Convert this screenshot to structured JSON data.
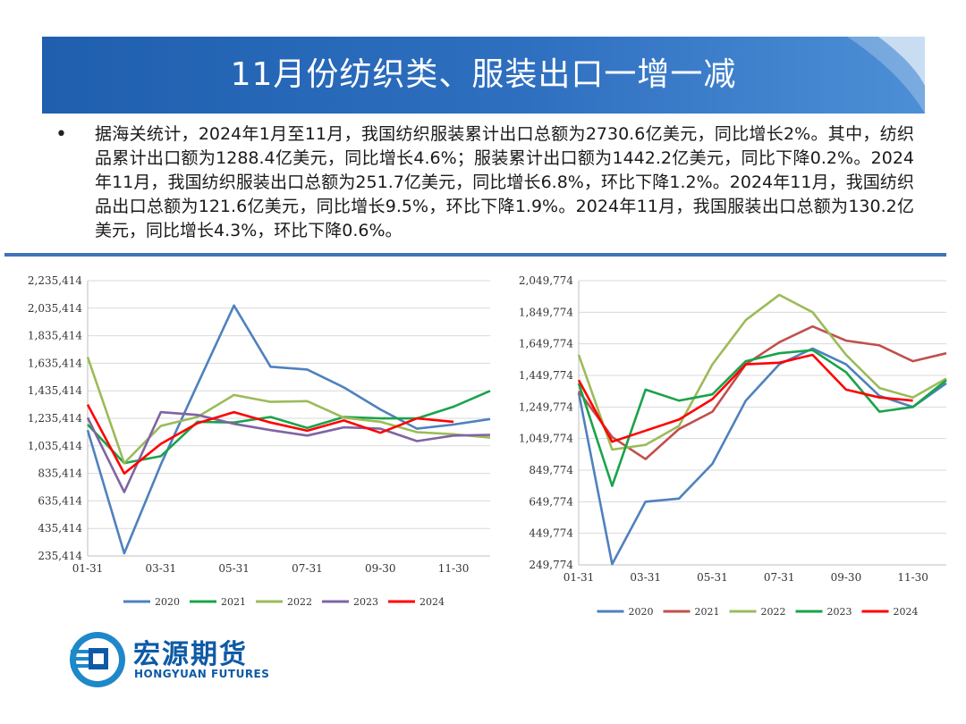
{
  "header": {
    "title": "11月份纺织类、服装出口一增一减"
  },
  "summary": {
    "bullet": "•",
    "text": "据海关统计，2024年1月至11月，我国纺织服装累计出口总额为2730.6亿美元，同比增长2%。其中，纺织品累计出口额为1288.4亿美元，同比增长4.6%；服装累计出口额为1442.2亿美元，同比下降0.2%。2024年11月，我国纺织服装出口总额为251.7亿美元，同比增长6.8%，环比下降1.2%。2024年11月，我国纺织品出口总额为121.6亿美元，同比增长9.5%，环比下降1.9%。2024年11月，我国服装出口总额为130.2亿美元，同比增长4.3%，环比下降0.6%。"
  },
  "logo": {
    "cn": "宏源期货",
    "en": "HONGYUAN FUTURES"
  },
  "colors": {
    "banner_dark": "#1f5fae",
    "banner_light": "#4d8fd6",
    "divider": "#3f73b9"
  },
  "chart_data": [
    {
      "type": "line",
      "title": "",
      "xlabel": "",
      "ylabel": "",
      "x_ticks": [
        "01-31",
        "03-31",
        "05-31",
        "07-31",
        "09-30",
        "11-30"
      ],
      "y_ticks": [
        "2,235,414",
        "2,035,414",
        "1,835,414",
        "1,635,414",
        "1,435,414",
        "1,235,414",
        "1,035,414",
        "835,414",
        "635,414",
        "435,414",
        "235,414"
      ],
      "ylim": [
        235414,
        2235414
      ],
      "months": 12,
      "grid": "horizontal",
      "legend_position": "bottom",
      "series": [
        {
          "name": "2020",
          "color": "#4f81bd",
          "values": [
            1150000,
            255000,
            900000,
            1480000,
            2055000,
            1610000,
            1590000,
            1460000,
            1300000,
            1160000,
            1190000,
            1230000
          ]
        },
        {
          "name": "2021",
          "color": "#1aa34a",
          "values": [
            1190000,
            910000,
            960000,
            1210000,
            1205000,
            1245000,
            1165000,
            1245000,
            1235000,
            1235000,
            1320000,
            1435000
          ]
        },
        {
          "name": "2022",
          "color": "#9bbb59",
          "values": [
            1680000,
            910000,
            1180000,
            1245000,
            1405000,
            1355000,
            1360000,
            1240000,
            1210000,
            1135000,
            1120000,
            1095000
          ]
        },
        {
          "name": "2023",
          "color": "#8064a2",
          "values": [
            1240000,
            700000,
            1280000,
            1260000,
            1195000,
            1150000,
            1110000,
            1170000,
            1160000,
            1070000,
            1110000,
            1115000
          ]
        },
        {
          "name": "2024",
          "color": "#ff0000",
          "values": [
            1335000,
            835000,
            1050000,
            1200000,
            1280000,
            1205000,
            1145000,
            1220000,
            1130000,
            1235000,
            1210000
          ]
        }
      ]
    },
    {
      "type": "line",
      "title": "",
      "xlabel": "",
      "ylabel": "",
      "x_ticks": [
        "01-31",
        "03-31",
        "05-31",
        "07-31",
        "09-30",
        "11-30"
      ],
      "y_ticks": [
        "2,049,774",
        "1,849,774",
        "1,649,774",
        "1,449,774",
        "1,249,774",
        "1,049,774",
        "849,774",
        "649,774",
        "449,774",
        "249,774"
      ],
      "ylim": [
        249774,
        2049774
      ],
      "months": 12,
      "grid": "horizontal",
      "legend_position": "bottom",
      "series": [
        {
          "name": "2020",
          "color": "#4f81bd",
          "values": [
            1340000,
            255000,
            650000,
            670000,
            890000,
            1290000,
            1520000,
            1620000,
            1520000,
            1320000,
            1250000,
            1400000
          ]
        },
        {
          "name": "2021",
          "color": "#c0504d",
          "values": [
            1350000,
            1060000,
            920000,
            1110000,
            1220000,
            1520000,
            1660000,
            1760000,
            1670000,
            1640000,
            1540000,
            1590000
          ]
        },
        {
          "name": "2022",
          "color": "#9bbb59",
          "values": [
            1580000,
            980000,
            1010000,
            1130000,
            1520000,
            1800000,
            1960000,
            1850000,
            1580000,
            1370000,
            1310000,
            1430000
          ]
        },
        {
          "name": "2023",
          "color": "#1aa34a",
          "values": [
            1400000,
            750000,
            1360000,
            1290000,
            1330000,
            1540000,
            1590000,
            1610000,
            1470000,
            1220000,
            1250000,
            1420000
          ]
        },
        {
          "name": "2024",
          "color": "#ff0000",
          "values": [
            1420000,
            1030000,
            1100000,
            1170000,
            1300000,
            1520000,
            1530000,
            1580000,
            1360000,
            1310000,
            1290000
          ]
        }
      ]
    }
  ]
}
